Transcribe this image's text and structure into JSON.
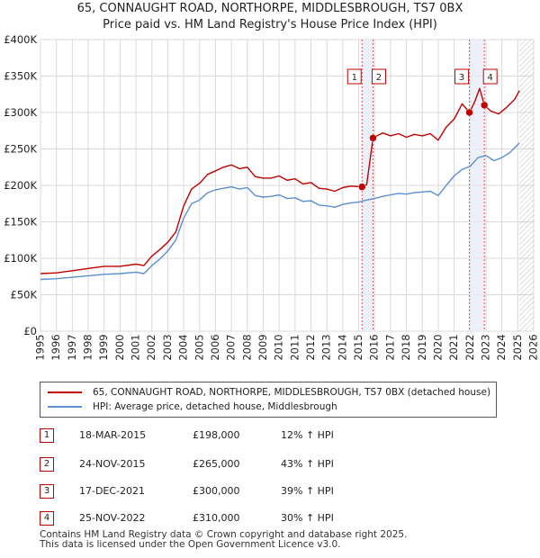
{
  "header": {
    "title": "65, CONNAUGHT ROAD, NORTHORPE, MIDDLESBROUGH, TS7 0BX",
    "subtitle": "Price paid vs. HM Land Registry's House Price Index (HPI)"
  },
  "chart_data": {
    "type": "line",
    "title": "65, CONNAUGHT ROAD, NORTHORPE, MIDDLESBROUGH, TS7 0BX",
    "subtitle": "Price paid vs. HM Land Registry's House Price Index (HPI)",
    "xlim": [
      1995,
      2026
    ],
    "ylim": [
      0,
      400000
    ],
    "x_ticks": [
      1995,
      1996,
      1997,
      1998,
      1999,
      2000,
      2001,
      2002,
      2003,
      2004,
      2005,
      2006,
      2007,
      2008,
      2009,
      2010,
      2011,
      2012,
      2013,
      2014,
      2015,
      2016,
      2017,
      2018,
      2019,
      2020,
      2021,
      2022,
      2023,
      2024,
      2025,
      2026
    ],
    "y_ticks": [
      {
        "value": 0,
        "label": "£0"
      },
      {
        "value": 50000,
        "label": "£50K"
      },
      {
        "value": 100000,
        "label": "£100K"
      },
      {
        "value": 150000,
        "label": "£150K"
      },
      {
        "value": 200000,
        "label": "£200K"
      },
      {
        "value": 250000,
        "label": "£250K"
      },
      {
        "value": 300000,
        "label": "£300K"
      },
      {
        "value": 350000,
        "label": "£350K"
      },
      {
        "value": 400000,
        "label": "£400K"
      }
    ],
    "grid": true,
    "future_hatch_from": 2025.1,
    "series": [
      {
        "name": "65, CONNAUGHT ROAD, NORTHORPE, MIDDLESBROUGH, TS7 0BX (detached house)",
        "color": "#c00000",
        "x": [
          1995,
          1996,
          1997,
          1998,
          1999,
          2000,
          2001,
          2001.5,
          2002,
          2002.5,
          2003,
          2003.5,
          2004,
          2004.5,
          2005,
          2005.5,
          2006,
          2006.5,
          2007,
          2007.5,
          2008,
          2008.5,
          2009,
          2009.5,
          2010,
          2010.5,
          2011,
          2011.5,
          2012,
          2012.5,
          2013,
          2013.5,
          2014,
          2014.5,
          2015.21,
          2015.5,
          2015.9,
          2016.5,
          2017,
          2017.5,
          2018,
          2018.5,
          2019,
          2019.5,
          2020,
          2020.5,
          2021,
          2021.5,
          2021.96,
          2022.3,
          2022.6,
          2022.9,
          2023.3,
          2023.8,
          2024.3,
          2024.8,
          2025.1
        ],
        "y": [
          79000,
          80000,
          83000,
          86000,
          89000,
          89000,
          92000,
          90000,
          103000,
          112000,
          122000,
          136000,
          172000,
          195000,
          203000,
          215000,
          220000,
          225000,
          228000,
          223000,
          225000,
          212000,
          210000,
          210000,
          213000,
          207000,
          209000,
          202000,
          204000,
          196000,
          195000,
          192000,
          197000,
          199000,
          198000,
          201000,
          265000,
          272000,
          268000,
          271000,
          266000,
          270000,
          268000,
          271000,
          262000,
          280000,
          291000,
          312000,
          300000,
          315000,
          333000,
          310000,
          302000,
          298000,
          307000,
          318000,
          330000
        ]
      },
      {
        "name": "HPI: Average price, detached house, Middlesbrough",
        "color": "#5b8fcf",
        "x": [
          1995,
          1996,
          1997,
          1998,
          1999,
          2000,
          2001,
          2001.5,
          2002,
          2002.5,
          2003,
          2003.5,
          2004,
          2004.5,
          2005,
          2005.5,
          2006,
          2006.5,
          2007,
          2007.5,
          2008,
          2008.5,
          2009,
          2009.5,
          2010,
          2010.5,
          2011,
          2011.5,
          2012,
          2012.5,
          2013,
          2013.5,
          2014,
          2014.5,
          2015,
          2015.5,
          2016,
          2016.5,
          2017,
          2017.5,
          2018,
          2018.5,
          2019,
          2019.5,
          2020,
          2020.5,
          2021,
          2021.5,
          2022,
          2022.5,
          2023,
          2023.5,
          2024,
          2024.5,
          2025.1
        ],
        "y": [
          71000,
          72000,
          74000,
          76000,
          78000,
          79000,
          81000,
          79000,
          90000,
          99000,
          110000,
          125000,
          155000,
          175000,
          180000,
          190000,
          194000,
          196000,
          198000,
          195000,
          197000,
          186000,
          184000,
          185000,
          187000,
          182000,
          183000,
          178000,
          179000,
          173000,
          172000,
          170000,
          174000,
          176000,
          177000,
          180000,
          182000,
          185000,
          187000,
          189000,
          188000,
          190000,
          191000,
          192000,
          186000,
          200000,
          213000,
          222000,
          226000,
          238000,
          241000,
          234000,
          238000,
          245000,
          258000
        ]
      }
    ],
    "sales": [
      {
        "id": "1",
        "x": 2015.21,
        "y": 198000
      },
      {
        "id": "2",
        "x": 2015.9,
        "y": 265000
      },
      {
        "id": "3",
        "x": 2021.96,
        "y": 300000
      },
      {
        "id": "4",
        "x": 2022.9,
        "y": 310000
      }
    ]
  },
  "legend": {
    "series_red": "65, CONNAUGHT ROAD, NORTHORPE, MIDDLESBROUGH, TS7 0BX (detached house)",
    "series_blue": "HPI: Average price, detached house, Middlesbrough"
  },
  "sales_table": [
    {
      "num": "1",
      "date": "18-MAR-2015",
      "price": "£198,000",
      "hpi": "12% ↑ HPI"
    },
    {
      "num": "2",
      "date": "24-NOV-2015",
      "price": "£265,000",
      "hpi": "43% ↑ HPI"
    },
    {
      "num": "3",
      "date": "17-DEC-2021",
      "price": "£300,000",
      "hpi": "39% ↑ HPI"
    },
    {
      "num": "4",
      "date": "25-NOV-2022",
      "price": "£310,000",
      "hpi": "30% ↑ HPI"
    }
  ],
  "footer": {
    "line1": "Contains HM Land Registry data © Crown copyright and database right 2025.",
    "line2": "This data is licensed under the Open Government Licence v3.0."
  },
  "colors": {
    "red": "#c00000",
    "blue": "#5b8fcf",
    "grid": "#d9d9d9"
  }
}
